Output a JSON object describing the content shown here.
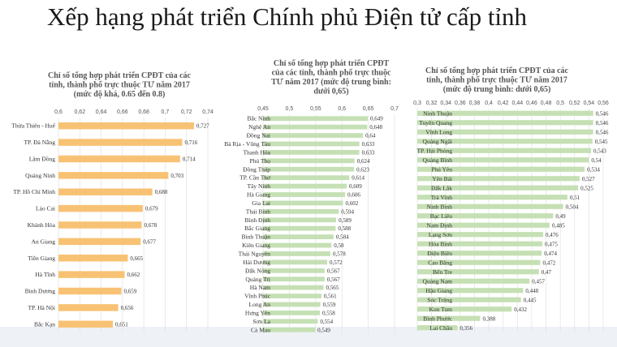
{
  "page": {
    "title": "Xếp hạng phát triển Chính phủ Điện tử cấp tỉnh"
  },
  "chart_data": [
    {
      "type": "bar",
      "orientation": "horizontal",
      "title_lines": [
        "Chỉ số tổng hợp phát triển CPĐT của các",
        "tỉnh, thành phố trực thuộc TƯ năm 2017",
        "(mức độ khá, 0.65 đến 0.8)"
      ],
      "xlim": [
        0.6,
        0.74
      ],
      "ticks": [
        "0,6",
        "0,62",
        "0,64",
        "0,66",
        "0,68",
        "0,7",
        "0,72",
        "0,74"
      ],
      "categories": [
        "Thừa Thiên - Huế",
        "TP. Đà Nẵng",
        "Lâm Đồng",
        "Quảng Ninh",
        "TP. Hồ Chí Minh",
        "Lào Cai",
        "Khánh Hòa",
        "An Giang",
        "Tiền Giang",
        "Hà Tĩnh",
        "Bình Dương",
        "TP. Hà Nội",
        "Bắc Kạn"
      ],
      "values": [
        0.727,
        0.716,
        0.714,
        0.703,
        0.688,
        0.679,
        0.678,
        0.677,
        0.665,
        0.662,
        0.659,
        0.656,
        0.651
      ],
      "labels": [
        "0,727",
        "0,716",
        "0,714",
        "0,703",
        "0,688",
        "0,679",
        "0,678",
        "0,677",
        "0,665",
        "0,662",
        "0,659",
        "0,656",
        "0,651"
      ],
      "color": "#f8c274",
      "grid": true
    },
    {
      "type": "bar",
      "orientation": "horizontal",
      "title_lines": [
        "Chỉ số tổng hợp phát triển CPĐT",
        "của các tỉnh, thành phố trực thuộc",
        "TƯ năm 2017 (mức độ trung bình:",
        "dưới 0,65)"
      ],
      "xlim": [
        0.45,
        0.7
      ],
      "ticks": [
        "0,45",
        "0,5",
        "0,55",
        "0,6",
        "0,65",
        "0,7"
      ],
      "categories": [
        "Bắc Ninh",
        "Nghệ An",
        "Đồng Nai",
        "Bà Rịa - Vũng Tàu",
        "Thanh Hóa",
        "Phú Thọ",
        "Đồng Tháp",
        "TP. Cần Thơ",
        "Tây Ninh",
        "Hà Giang",
        "Gia Lai",
        "Thái Bình",
        "Bình Định",
        "Bắc Giang",
        "Bình Thuận",
        "Kiên Giang",
        "Thái Nguyên",
        "Hải Dương",
        "Đắk Nông",
        "Quảng Trị",
        "Hà Nam",
        "Vĩnh Phúc",
        "Long An",
        "Hưng Yên",
        "Sơn La",
        "Cà Mau"
      ],
      "values": [
        0.649,
        0.648,
        0.64,
        0.633,
        0.633,
        0.624,
        0.623,
        0.614,
        0.609,
        0.606,
        0.602,
        0.594,
        0.589,
        0.588,
        0.584,
        0.58,
        0.578,
        0.572,
        0.567,
        0.567,
        0.565,
        0.561,
        0.559,
        0.558,
        0.554,
        0.549
      ],
      "labels": [
        "0,649",
        "0,648",
        "0,64",
        "0,633",
        "0,633",
        "0,624",
        "0,623",
        "0,614",
        "0,609",
        "0,606",
        "0,602",
        "0,594",
        "0,589",
        "0,588",
        "0,584",
        "0,58",
        "0,578",
        "0,572",
        "0,567",
        "0,567",
        "0,565",
        "0,561",
        "0,559",
        "0,558",
        "0,554",
        "0,549"
      ],
      "color": "#c5e0b4",
      "grid": true
    },
    {
      "type": "bar",
      "orientation": "horizontal",
      "title_lines": [
        "Chỉ số tổng hợp phát triển CPĐT  của các",
        "tỉnh, thành phố trực thuộc TƯ năm 2017",
        "(mức độ trung bình: dưới 0,65)"
      ],
      "xlim": [
        0.3,
        0.56
      ],
      "ticks": [
        "0,3",
        "0,32",
        "0,34",
        "0,36",
        "0,38",
        "0,4",
        "0,42",
        "0,44",
        "0,46",
        "0,48",
        "0,5",
        "0,52",
        "0,54",
        "0,56"
      ],
      "categories": [
        "Ninh Thuận",
        "Tuyên Quang",
        "Vĩnh Long",
        "Quảng Ngãi",
        "TP. Hải Phòng",
        "Quảng Bình",
        "Phú Yên",
        "Yên Bái",
        "Đắk Lắk",
        "Trà Vinh",
        "Ninh Bình",
        "Bạc Liêu",
        "Nam Định",
        "Lạng Sơn",
        "Hòa Bình",
        "Điện Biên",
        "Cao Bằng",
        "Bến Tre",
        "Quảng Nam",
        "Hậu Giang",
        "Sóc Trăng",
        "Kon Tum",
        "Bình Phước",
        "Lai Châu"
      ],
      "values": [
        0.546,
        0.546,
        0.546,
        0.545,
        0.543,
        0.54,
        0.534,
        0.527,
        0.525,
        0.51,
        0.504,
        0.49,
        0.485,
        0.476,
        0.475,
        0.474,
        0.472,
        0.47,
        0.457,
        0.448,
        0.445,
        0.432,
        0.388,
        0.356
      ],
      "labels": [
        "0,546",
        "0,546",
        "0,546",
        "0,545",
        "0,543",
        "0,54",
        "0,534",
        "0,527",
        "0,525",
        "0,51",
        "0,504",
        "0,49",
        "0,485",
        "0,476",
        "0,475",
        "0,474",
        "0,472",
        "0,47",
        "0,457",
        "0,448",
        "0,445",
        "0,432",
        "0,388",
        "0,356"
      ],
      "color": "#c5e0b4",
      "grid": true
    }
  ]
}
